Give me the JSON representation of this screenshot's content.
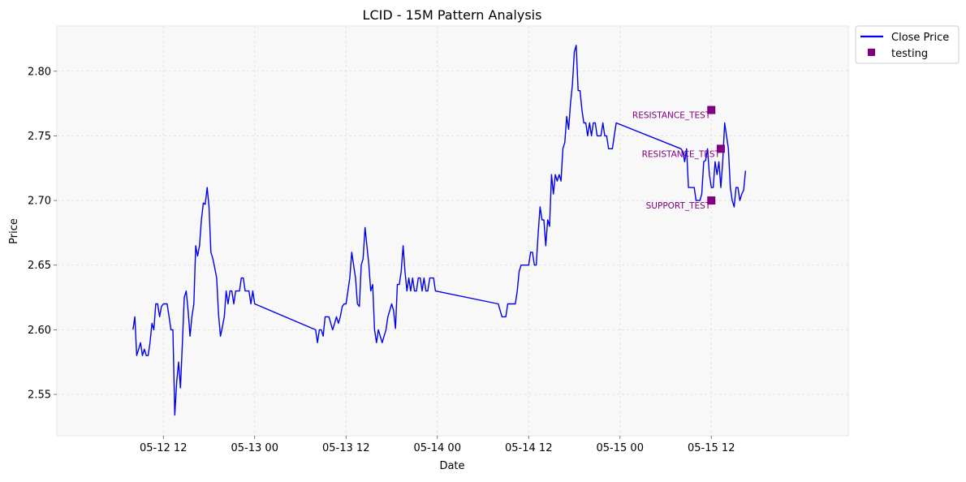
{
  "chart_data": {
    "type": "line",
    "title": "LCID - 15M Pattern Analysis",
    "xlabel": "Date",
    "ylabel": "Price",
    "xlim": [
      "2025-05-11 22:00",
      "2025-05-16 06:00"
    ],
    "ylim": [
      2.518,
      2.835
    ],
    "grid": true,
    "legend_position": "outside-top-right",
    "x_ticks": [
      {
        "t": "2025-05-12 12:00",
        "label": "05-12 12"
      },
      {
        "t": "2025-05-13 00:00",
        "label": "05-13 00"
      },
      {
        "t": "2025-05-13 12:00",
        "label": "05-13 12"
      },
      {
        "t": "2025-05-14 00:00",
        "label": "05-14 00"
      },
      {
        "t": "2025-05-14 12:00",
        "label": "05-14 12"
      },
      {
        "t": "2025-05-15 00:00",
        "label": "05-15 00"
      },
      {
        "t": "2025-05-15 12:00",
        "label": "05-15 12"
      }
    ],
    "y_ticks": [
      2.55,
      2.6,
      2.65,
      2.7,
      2.75,
      2.8
    ],
    "y_tick_labels": [
      "2.55",
      "2.60",
      "2.65",
      "2.70",
      "2.75",
      "2.80"
    ],
    "series": [
      {
        "name": "Close Price",
        "color": "#0000ee",
        "points": [
          [
            "2025-05-12 08:00",
            2.6
          ],
          [
            "2025-05-12 08:15",
            2.61
          ],
          [
            "2025-05-12 08:30",
            2.58
          ],
          [
            "2025-05-12 08:45",
            2.585
          ],
          [
            "2025-05-12 09:00",
            2.59
          ],
          [
            "2025-05-12 09:15",
            2.58
          ],
          [
            "2025-05-12 09:30",
            2.585
          ],
          [
            "2025-05-12 09:45",
            2.58
          ],
          [
            "2025-05-12 10:00",
            2.58
          ],
          [
            "2025-05-12 10:15",
            2.59
          ],
          [
            "2025-05-12 10:30",
            2.605
          ],
          [
            "2025-05-12 10:45",
            2.6
          ],
          [
            "2025-05-12 11:00",
            2.62
          ],
          [
            "2025-05-12 11:15",
            2.62
          ],
          [
            "2025-05-12 11:30",
            2.61
          ],
          [
            "2025-05-12 11:45",
            2.618
          ],
          [
            "2025-05-12 12:00",
            2.62
          ],
          [
            "2025-05-12 12:15",
            2.62
          ],
          [
            "2025-05-12 12:30",
            2.62
          ],
          [
            "2025-05-12 12:45",
            2.61
          ],
          [
            "2025-05-12 13:00",
            2.6
          ],
          [
            "2025-05-12 13:15",
            2.6
          ],
          [
            "2025-05-12 13:30",
            2.534
          ],
          [
            "2025-05-12 13:45",
            2.56
          ],
          [
            "2025-05-12 14:00",
            2.575
          ],
          [
            "2025-05-12 14:15",
            2.555
          ],
          [
            "2025-05-12 14:30",
            2.59
          ],
          [
            "2025-05-12 14:45",
            2.625
          ],
          [
            "2025-05-12 15:00",
            2.63
          ],
          [
            "2025-05-12 15:15",
            2.615
          ],
          [
            "2025-05-12 15:30",
            2.595
          ],
          [
            "2025-05-12 15:45",
            2.61
          ],
          [
            "2025-05-12 16:00",
            2.62
          ],
          [
            "2025-05-12 16:15",
            2.665
          ],
          [
            "2025-05-12 16:30",
            2.657
          ],
          [
            "2025-05-12 16:45",
            2.665
          ],
          [
            "2025-05-12 17:00",
            2.685
          ],
          [
            "2025-05-12 17:15",
            2.698
          ],
          [
            "2025-05-12 17:30",
            2.697
          ],
          [
            "2025-05-12 17:45",
            2.71
          ],
          [
            "2025-05-12 18:00",
            2.695
          ],
          [
            "2025-05-12 18:15",
            2.66
          ],
          [
            "2025-05-12 18:30",
            2.655
          ],
          [
            "2025-05-12 18:45",
            2.648
          ],
          [
            "2025-05-12 19:00",
            2.64
          ],
          [
            "2025-05-12 19:15",
            2.612
          ],
          [
            "2025-05-12 19:30",
            2.595
          ],
          [
            "2025-05-12 19:45",
            2.602
          ],
          [
            "2025-05-12 20:00",
            2.61
          ],
          [
            "2025-05-12 20:15",
            2.63
          ],
          [
            "2025-05-12 20:30",
            2.62
          ],
          [
            "2025-05-12 20:45",
            2.63
          ],
          [
            "2025-05-12 21:00",
            2.63
          ],
          [
            "2025-05-12 21:15",
            2.62
          ],
          [
            "2025-05-12 21:30",
            2.63
          ],
          [
            "2025-05-12 21:45",
            2.63
          ],
          [
            "2025-05-12 22:00",
            2.63
          ],
          [
            "2025-05-12 22:15",
            2.64
          ],
          [
            "2025-05-12 22:30",
            2.64
          ],
          [
            "2025-05-12 22:45",
            2.63
          ],
          [
            "2025-05-12 23:00",
            2.63
          ],
          [
            "2025-05-12 23:15",
            2.63
          ],
          [
            "2025-05-12 23:30",
            2.62
          ],
          [
            "2025-05-12 23:45",
            2.63
          ],
          [
            "2025-05-13 00:00",
            2.62
          ],
          [
            "2025-05-13 08:00",
            2.6
          ],
          [
            "2025-05-13 08:15",
            2.59
          ],
          [
            "2025-05-13 08:30",
            2.6
          ],
          [
            "2025-05-13 08:45",
            2.6
          ],
          [
            "2025-05-13 09:00",
            2.595
          ],
          [
            "2025-05-13 09:15",
            2.61
          ],
          [
            "2025-05-13 09:30",
            2.61
          ],
          [
            "2025-05-13 09:45",
            2.61
          ],
          [
            "2025-05-13 10:00",
            2.605
          ],
          [
            "2025-05-13 10:15",
            2.6
          ],
          [
            "2025-05-13 10:30",
            2.605
          ],
          [
            "2025-05-13 10:45",
            2.61
          ],
          [
            "2025-05-13 11:00",
            2.605
          ],
          [
            "2025-05-13 11:15",
            2.61
          ],
          [
            "2025-05-13 11:30",
            2.618
          ],
          [
            "2025-05-13 11:45",
            2.62
          ],
          [
            "2025-05-13 12:00",
            2.62
          ],
          [
            "2025-05-13 12:15",
            2.63
          ],
          [
            "2025-05-13 12:30",
            2.64
          ],
          [
            "2025-05-13 12:45",
            2.66
          ],
          [
            "2025-05-13 13:00",
            2.65
          ],
          [
            "2025-05-13 13:15",
            2.64
          ],
          [
            "2025-05-13 13:30",
            2.62
          ],
          [
            "2025-05-13 13:45",
            2.618
          ],
          [
            "2025-05-13 14:00",
            2.65
          ],
          [
            "2025-05-13 14:15",
            2.655
          ],
          [
            "2025-05-13 14:30",
            2.679
          ],
          [
            "2025-05-13 14:45",
            2.665
          ],
          [
            "2025-05-13 15:00",
            2.65
          ],
          [
            "2025-05-13 15:15",
            2.63
          ],
          [
            "2025-05-13 15:30",
            2.635
          ],
          [
            "2025-05-13 15:45",
            2.6
          ],
          [
            "2025-05-13 16:00",
            2.59
          ],
          [
            "2025-05-13 16:15",
            2.6
          ],
          [
            "2025-05-13 16:30",
            2.595
          ],
          [
            "2025-05-13 16:45",
            2.59
          ],
          [
            "2025-05-13 17:00",
            2.595
          ],
          [
            "2025-05-13 17:15",
            2.6
          ],
          [
            "2025-05-13 17:30",
            2.61
          ],
          [
            "2025-05-13 17:45",
            2.615
          ],
          [
            "2025-05-13 18:00",
            2.62
          ],
          [
            "2025-05-13 18:15",
            2.615
          ],
          [
            "2025-05-13 18:30",
            2.601
          ],
          [
            "2025-05-13 18:45",
            2.635
          ],
          [
            "2025-05-13 19:00",
            2.635
          ],
          [
            "2025-05-13 19:15",
            2.645
          ],
          [
            "2025-05-13 19:30",
            2.665
          ],
          [
            "2025-05-13 19:45",
            2.645
          ],
          [
            "2025-05-13 20:00",
            2.63
          ],
          [
            "2025-05-13 20:15",
            2.64
          ],
          [
            "2025-05-13 20:30",
            2.63
          ],
          [
            "2025-05-13 20:45",
            2.64
          ],
          [
            "2025-05-13 21:00",
            2.63
          ],
          [
            "2025-05-13 21:15",
            2.63
          ],
          [
            "2025-05-13 21:30",
            2.64
          ],
          [
            "2025-05-13 21:45",
            2.64
          ],
          [
            "2025-05-13 22:00",
            2.63
          ],
          [
            "2025-05-13 22:15",
            2.64
          ],
          [
            "2025-05-13 22:30",
            2.63
          ],
          [
            "2025-05-13 22:45",
            2.63
          ],
          [
            "2025-05-13 23:00",
            2.64
          ],
          [
            "2025-05-13 23:15",
            2.64
          ],
          [
            "2025-05-13 23:30",
            2.64
          ],
          [
            "2025-05-13 23:45",
            2.63
          ],
          [
            "2025-05-14 08:00",
            2.62
          ],
          [
            "2025-05-14 08:15",
            2.615
          ],
          [
            "2025-05-14 08:30",
            2.61
          ],
          [
            "2025-05-14 08:45",
            2.61
          ],
          [
            "2025-05-14 09:00",
            2.61
          ],
          [
            "2025-05-14 09:15",
            2.62
          ],
          [
            "2025-05-14 09:30",
            2.62
          ],
          [
            "2025-05-14 09:45",
            2.62
          ],
          [
            "2025-05-14 10:00",
            2.62
          ],
          [
            "2025-05-14 10:15",
            2.62
          ],
          [
            "2025-05-14 10:30",
            2.63
          ],
          [
            "2025-05-14 10:45",
            2.645
          ],
          [
            "2025-05-14 11:00",
            2.65
          ],
          [
            "2025-05-14 11:15",
            2.65
          ],
          [
            "2025-05-14 11:30",
            2.65
          ],
          [
            "2025-05-14 11:45",
            2.65
          ],
          [
            "2025-05-14 12:00",
            2.65
          ],
          [
            "2025-05-14 12:15",
            2.66
          ],
          [
            "2025-05-14 12:30",
            2.66
          ],
          [
            "2025-05-14 12:45",
            2.65
          ],
          [
            "2025-05-14 13:00",
            2.65
          ],
          [
            "2025-05-14 13:15",
            2.675
          ],
          [
            "2025-05-14 13:30",
            2.695
          ],
          [
            "2025-05-14 13:45",
            2.685
          ],
          [
            "2025-05-14 14:00",
            2.685
          ],
          [
            "2025-05-14 14:15",
            2.665
          ],
          [
            "2025-05-14 14:30",
            2.685
          ],
          [
            "2025-05-14 14:45",
            2.68
          ],
          [
            "2025-05-14 15:00",
            2.72
          ],
          [
            "2025-05-14 15:15",
            2.705
          ],
          [
            "2025-05-14 15:30",
            2.72
          ],
          [
            "2025-05-14 15:45",
            2.715
          ],
          [
            "2025-05-14 16:00",
            2.72
          ],
          [
            "2025-05-14 16:15",
            2.715
          ],
          [
            "2025-05-14 16:30",
            2.74
          ],
          [
            "2025-05-14 16:45",
            2.745
          ],
          [
            "2025-05-14 17:00",
            2.765
          ],
          [
            "2025-05-14 17:15",
            2.755
          ],
          [
            "2025-05-14 17:30",
            2.775
          ],
          [
            "2025-05-14 17:45",
            2.79
          ],
          [
            "2025-05-14 18:00",
            2.815
          ],
          [
            "2025-05-14 18:15",
            2.82
          ],
          [
            "2025-05-14 18:30",
            2.785
          ],
          [
            "2025-05-14 18:45",
            2.785
          ],
          [
            "2025-05-14 19:00",
            2.77
          ],
          [
            "2025-05-14 19:15",
            2.76
          ],
          [
            "2025-05-14 19:30",
            2.76
          ],
          [
            "2025-05-14 19:45",
            2.75
          ],
          [
            "2025-05-14 20:00",
            2.76
          ],
          [
            "2025-05-14 20:15",
            2.75
          ],
          [
            "2025-05-14 20:30",
            2.76
          ],
          [
            "2025-05-14 20:45",
            2.76
          ],
          [
            "2025-05-14 21:00",
            2.75
          ],
          [
            "2025-05-14 21:15",
            2.75
          ],
          [
            "2025-05-14 21:30",
            2.75
          ],
          [
            "2025-05-14 21:45",
            2.76
          ],
          [
            "2025-05-14 22:00",
            2.75
          ],
          [
            "2025-05-14 22:15",
            2.75
          ],
          [
            "2025-05-14 22:30",
            2.74
          ],
          [
            "2025-05-14 22:45",
            2.74
          ],
          [
            "2025-05-14 23:00",
            2.74
          ],
          [
            "2025-05-14 23:15",
            2.75
          ],
          [
            "2025-05-14 23:30",
            2.76
          ],
          [
            "2025-05-15 08:00",
            2.74
          ],
          [
            "2025-05-15 08:15",
            2.738
          ],
          [
            "2025-05-15 08:30",
            2.73
          ],
          [
            "2025-05-15 08:45",
            2.74
          ],
          [
            "2025-05-15 09:00",
            2.71
          ],
          [
            "2025-05-15 09:15",
            2.71
          ],
          [
            "2025-05-15 09:30",
            2.71
          ],
          [
            "2025-05-15 09:45",
            2.71
          ],
          [
            "2025-05-15 10:00",
            2.7
          ],
          [
            "2025-05-15 10:15",
            2.7
          ],
          [
            "2025-05-15 10:30",
            2.7
          ],
          [
            "2025-05-15 10:45",
            2.705
          ],
          [
            "2025-05-15 11:00",
            2.73
          ],
          [
            "2025-05-15 11:15",
            2.731
          ],
          [
            "2025-05-15 11:30",
            2.74
          ],
          [
            "2025-05-15 11:45",
            2.72
          ],
          [
            "2025-05-15 12:00",
            2.71
          ],
          [
            "2025-05-15 12:15",
            2.71
          ],
          [
            "2025-05-15 12:30",
            2.73
          ],
          [
            "2025-05-15 12:45",
            2.72
          ],
          [
            "2025-05-15 13:00",
            2.73
          ],
          [
            "2025-05-15 13:15",
            2.71
          ],
          [
            "2025-05-15 13:30",
            2.73
          ],
          [
            "2025-05-15 13:45",
            2.76
          ],
          [
            "2025-05-15 14:00",
            2.75
          ],
          [
            "2025-05-15 14:15",
            2.74
          ],
          [
            "2025-05-15 14:30",
            2.71
          ],
          [
            "2025-05-15 14:45",
            2.7
          ],
          [
            "2025-05-15 15:00",
            2.695
          ],
          [
            "2025-05-15 15:15",
            2.71
          ],
          [
            "2025-05-15 15:30",
            2.71
          ],
          [
            "2025-05-15 15:45",
            2.7
          ],
          [
            "2025-05-15 16:00",
            2.705
          ],
          [
            "2025-05-15 16:15",
            2.708
          ],
          [
            "2025-05-15 16:30",
            2.723
          ]
        ]
      },
      {
        "name": "testing",
        "color": "#800080",
        "marker": "square",
        "points": [
          {
            "t": "2025-05-15 12:00",
            "y": 2.77,
            "label": "RESISTANCE_TEST"
          },
          {
            "t": "2025-05-15 13:15",
            "y": 2.74,
            "label": "RESISTANCE_TEST"
          },
          {
            "t": "2025-05-15 12:00",
            "y": 2.7,
            "label": "SUPPORT_TEST"
          }
        ]
      }
    ]
  }
}
